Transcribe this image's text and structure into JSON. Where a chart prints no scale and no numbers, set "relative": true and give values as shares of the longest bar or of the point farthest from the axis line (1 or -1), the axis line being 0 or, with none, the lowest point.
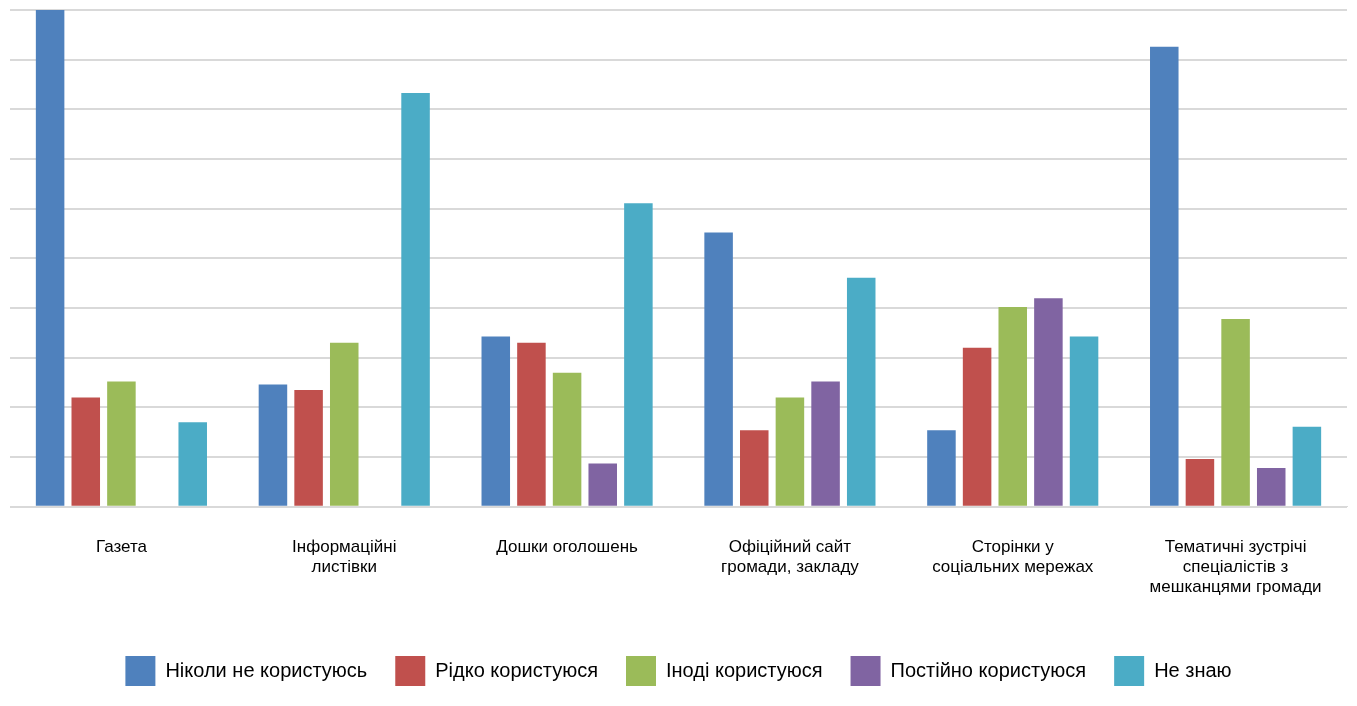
{
  "chart_data": {
    "type": "bar",
    "relative": true,
    "grid": "y",
    "legend": "bottom",
    "categories": [
      "Газета",
      "Інформаційні листівки",
      "Дошки оголошень",
      "Офіційний сайт громади, закладу",
      "Сторінки у соціальних мережах",
      "Тематичні зустрічі спеціалістів з мешканцями громади"
    ],
    "series": [
      {
        "name": "Ніколи не користуюсь",
        "color": "#4f81bd",
        "values": [
          1.0,
          0.246,
          0.343,
          0.552,
          0.154,
          0.926
        ]
      },
      {
        "name": "Рідко користуюся",
        "color": "#c0504d",
        "values": [
          0.22,
          0.235,
          0.33,
          0.154,
          0.32,
          0.096
        ]
      },
      {
        "name": "Іноді користуюся",
        "color": "#9bbb59",
        "values": [
          0.252,
          0.33,
          0.27,
          0.22,
          0.402,
          0.378
        ]
      },
      {
        "name": "Постійно користуюся",
        "color": "#8064a2",
        "values": [
          null,
          null,
          0.087,
          0.252,
          0.42,
          0.078
        ]
      },
      {
        "name": "Не знаю",
        "color": "#4bacc6",
        "values": [
          0.17,
          0.833,
          0.611,
          0.461,
          0.343,
          0.161
        ]
      }
    ]
  }
}
